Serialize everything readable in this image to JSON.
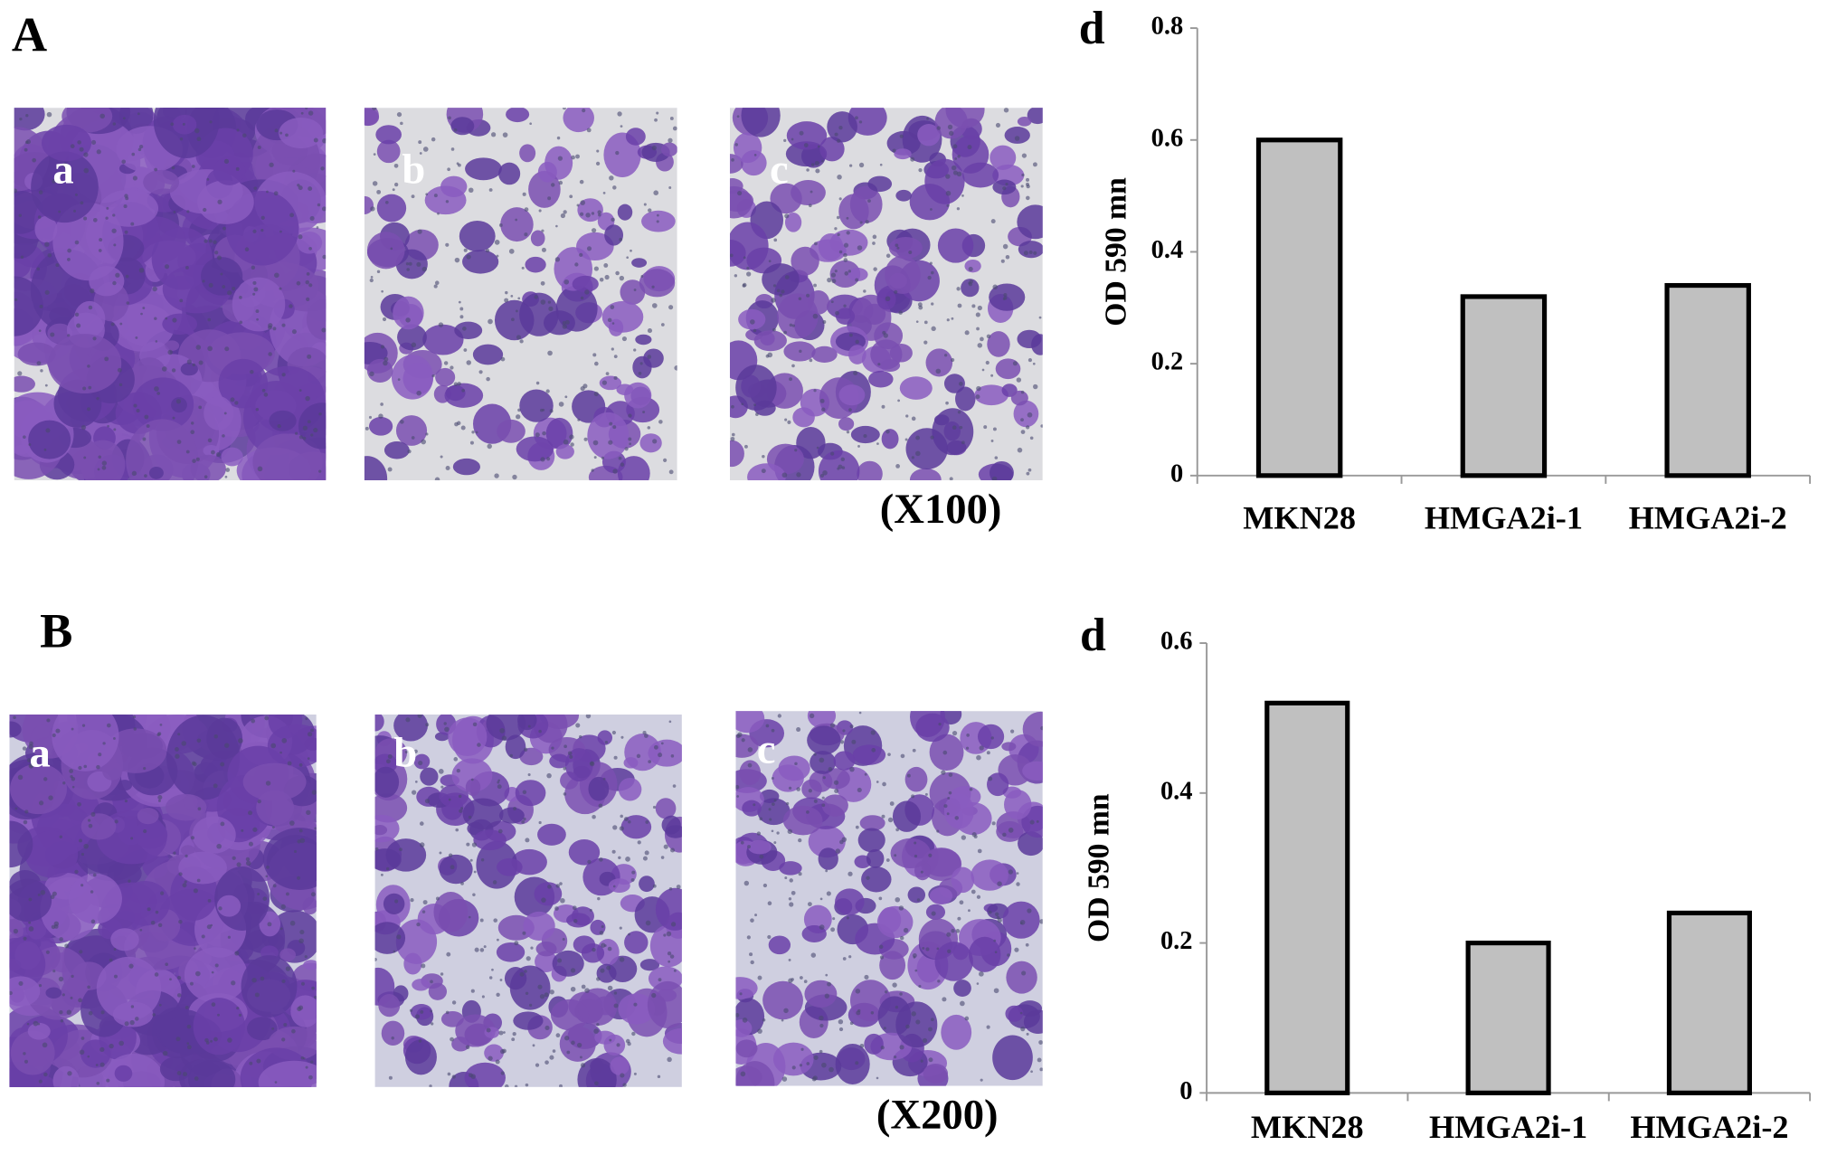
{
  "panels": [
    {
      "label": "A",
      "images": [
        "a",
        "b",
        "c"
      ],
      "magnification": "(X100)"
    },
    {
      "label": "B",
      "images": [
        "a",
        "b",
        "c"
      ],
      "magnification": "(X200)"
    }
  ],
  "chart_data": [
    {
      "type": "bar",
      "panel_label": "d",
      "y_label": "OD 590 mn",
      "categories": [
        "MKN28",
        "HMGA2i-1",
        "HMGA2i-2"
      ],
      "values": [
        0.6,
        0.32,
        0.34
      ],
      "color": "#c0c0c0",
      "ylim": [
        0,
        0.8
      ],
      "yticks": [
        0,
        0.2,
        0.4,
        0.6,
        0.8
      ],
      "grid": false
    },
    {
      "type": "bar",
      "panel_label": "d",
      "y_label": "OD 590 mn",
      "categories": [
        "MKN28",
        "HMGA2i-1",
        "HMGA2i-2"
      ],
      "values": [
        0.52,
        0.2,
        0.24
      ],
      "color": "#c0c0c0",
      "ylim": [
        0,
        0.6
      ],
      "yticks": [
        0,
        0.2,
        0.4,
        0.6
      ],
      "grid": false
    }
  ]
}
